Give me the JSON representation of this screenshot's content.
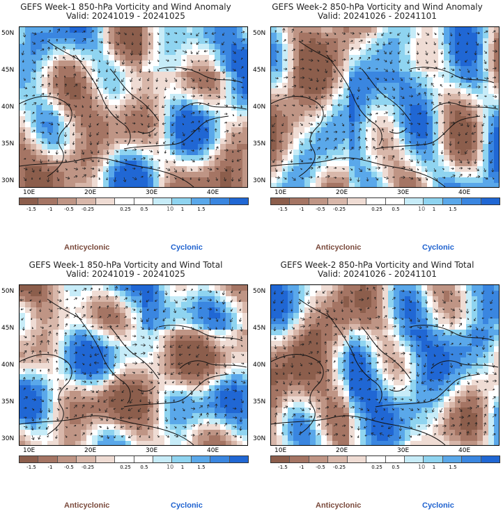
{
  "panels": [
    {
      "title": "GEFS Week-1 850-hPa Vorticity and Wind Anomaly",
      "valid": "Valid: 20241019 - 20241025",
      "pattern": 0
    },
    {
      "title": "GEFS Week-2 850-hPa Vorticity and Wind Anomaly",
      "valid": "Valid: 20241026 - 20241101",
      "pattern": 1
    },
    {
      "title": "GEFS Week-1 850-hPa Vorticity and Wind Total",
      "valid": "Valid: 20241019 - 20241025",
      "pattern": 2
    },
    {
      "title": "GEFS Week-2 850-hPa Vorticity and Wind Total",
      "valid": "Valid: 20241026 - 20241101",
      "pattern": 3
    }
  ],
  "lat_labels": [
    "50N",
    "45N",
    "40N",
    "35N",
    "30N"
  ],
  "lon_labels": [
    "10E",
    "20E",
    "30E",
    "40E"
  ],
  "colorbar": {
    "labels": [
      "-1.5",
      "-1",
      "-0.5",
      "-0.25",
      "0.25",
      "0.5",
      "1",
      "1.5"
    ],
    "unit_tag": "10",
    "colors": [
      "#8c5e4c",
      "#a57564",
      "#bf9585",
      "#d8b7aa",
      "#efdcd4",
      "#ffffff",
      "#ffffff",
      "#c7ecf8",
      "#8fd4f0",
      "#5aa8ea",
      "#3a86e0",
      "#2067d4"
    ]
  },
  "legend": {
    "anticyclonic": "Anticyclonic",
    "cyclonic": "Cyclonic",
    "anticyclonic_color": "#7a4a3c",
    "cyclonic_color": "#1f62cf"
  }
}
